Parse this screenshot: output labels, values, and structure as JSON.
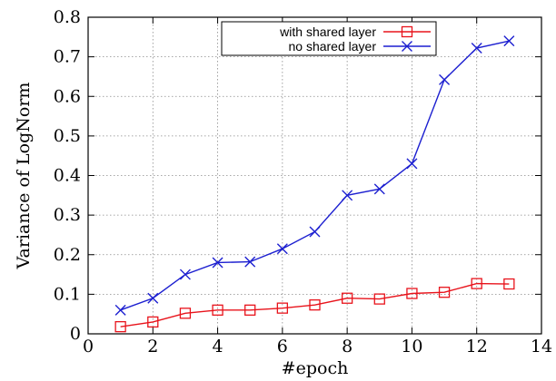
{
  "chart_data": {
    "type": "line",
    "title": "",
    "xlabel": "#epoch",
    "ylabel": "Variance of LogNorm",
    "xlim": [
      0,
      14
    ],
    "ylim": [
      0,
      0.8
    ],
    "xticks": [
      0,
      2,
      4,
      6,
      8,
      10,
      12,
      14
    ],
    "yticks": [
      0,
      0.1,
      0.2,
      0.3,
      0.4,
      0.5,
      0.6,
      0.7,
      0.8
    ],
    "xtick_labels": [
      "0",
      "2",
      "4",
      "6",
      "8",
      "10",
      "12",
      "14"
    ],
    "ytick_labels": [
      "0",
      "0.1",
      "0.2",
      "0.3",
      "0.4",
      "0.5",
      "0.6",
      "0.7",
      "0.8"
    ],
    "grid": true,
    "legend_position": "top-right",
    "x": [
      1,
      2,
      3,
      4,
      5,
      6,
      7,
      8,
      9,
      10,
      11,
      12,
      13
    ],
    "series": [
      {
        "name": "with shared layer",
        "color": "#e8131b",
        "marker": "square",
        "values": [
          0.018,
          0.03,
          0.052,
          0.06,
          0.06,
          0.065,
          0.073,
          0.09,
          0.088,
          0.102,
          0.105,
          0.127,
          0.126
        ]
      },
      {
        "name": "no shared layer",
        "color": "#1c1fd0",
        "marker": "x",
        "values": [
          0.06,
          0.09,
          0.15,
          0.18,
          0.182,
          0.215,
          0.258,
          0.35,
          0.366,
          0.43,
          0.642,
          0.722,
          0.74
        ]
      }
    ]
  }
}
